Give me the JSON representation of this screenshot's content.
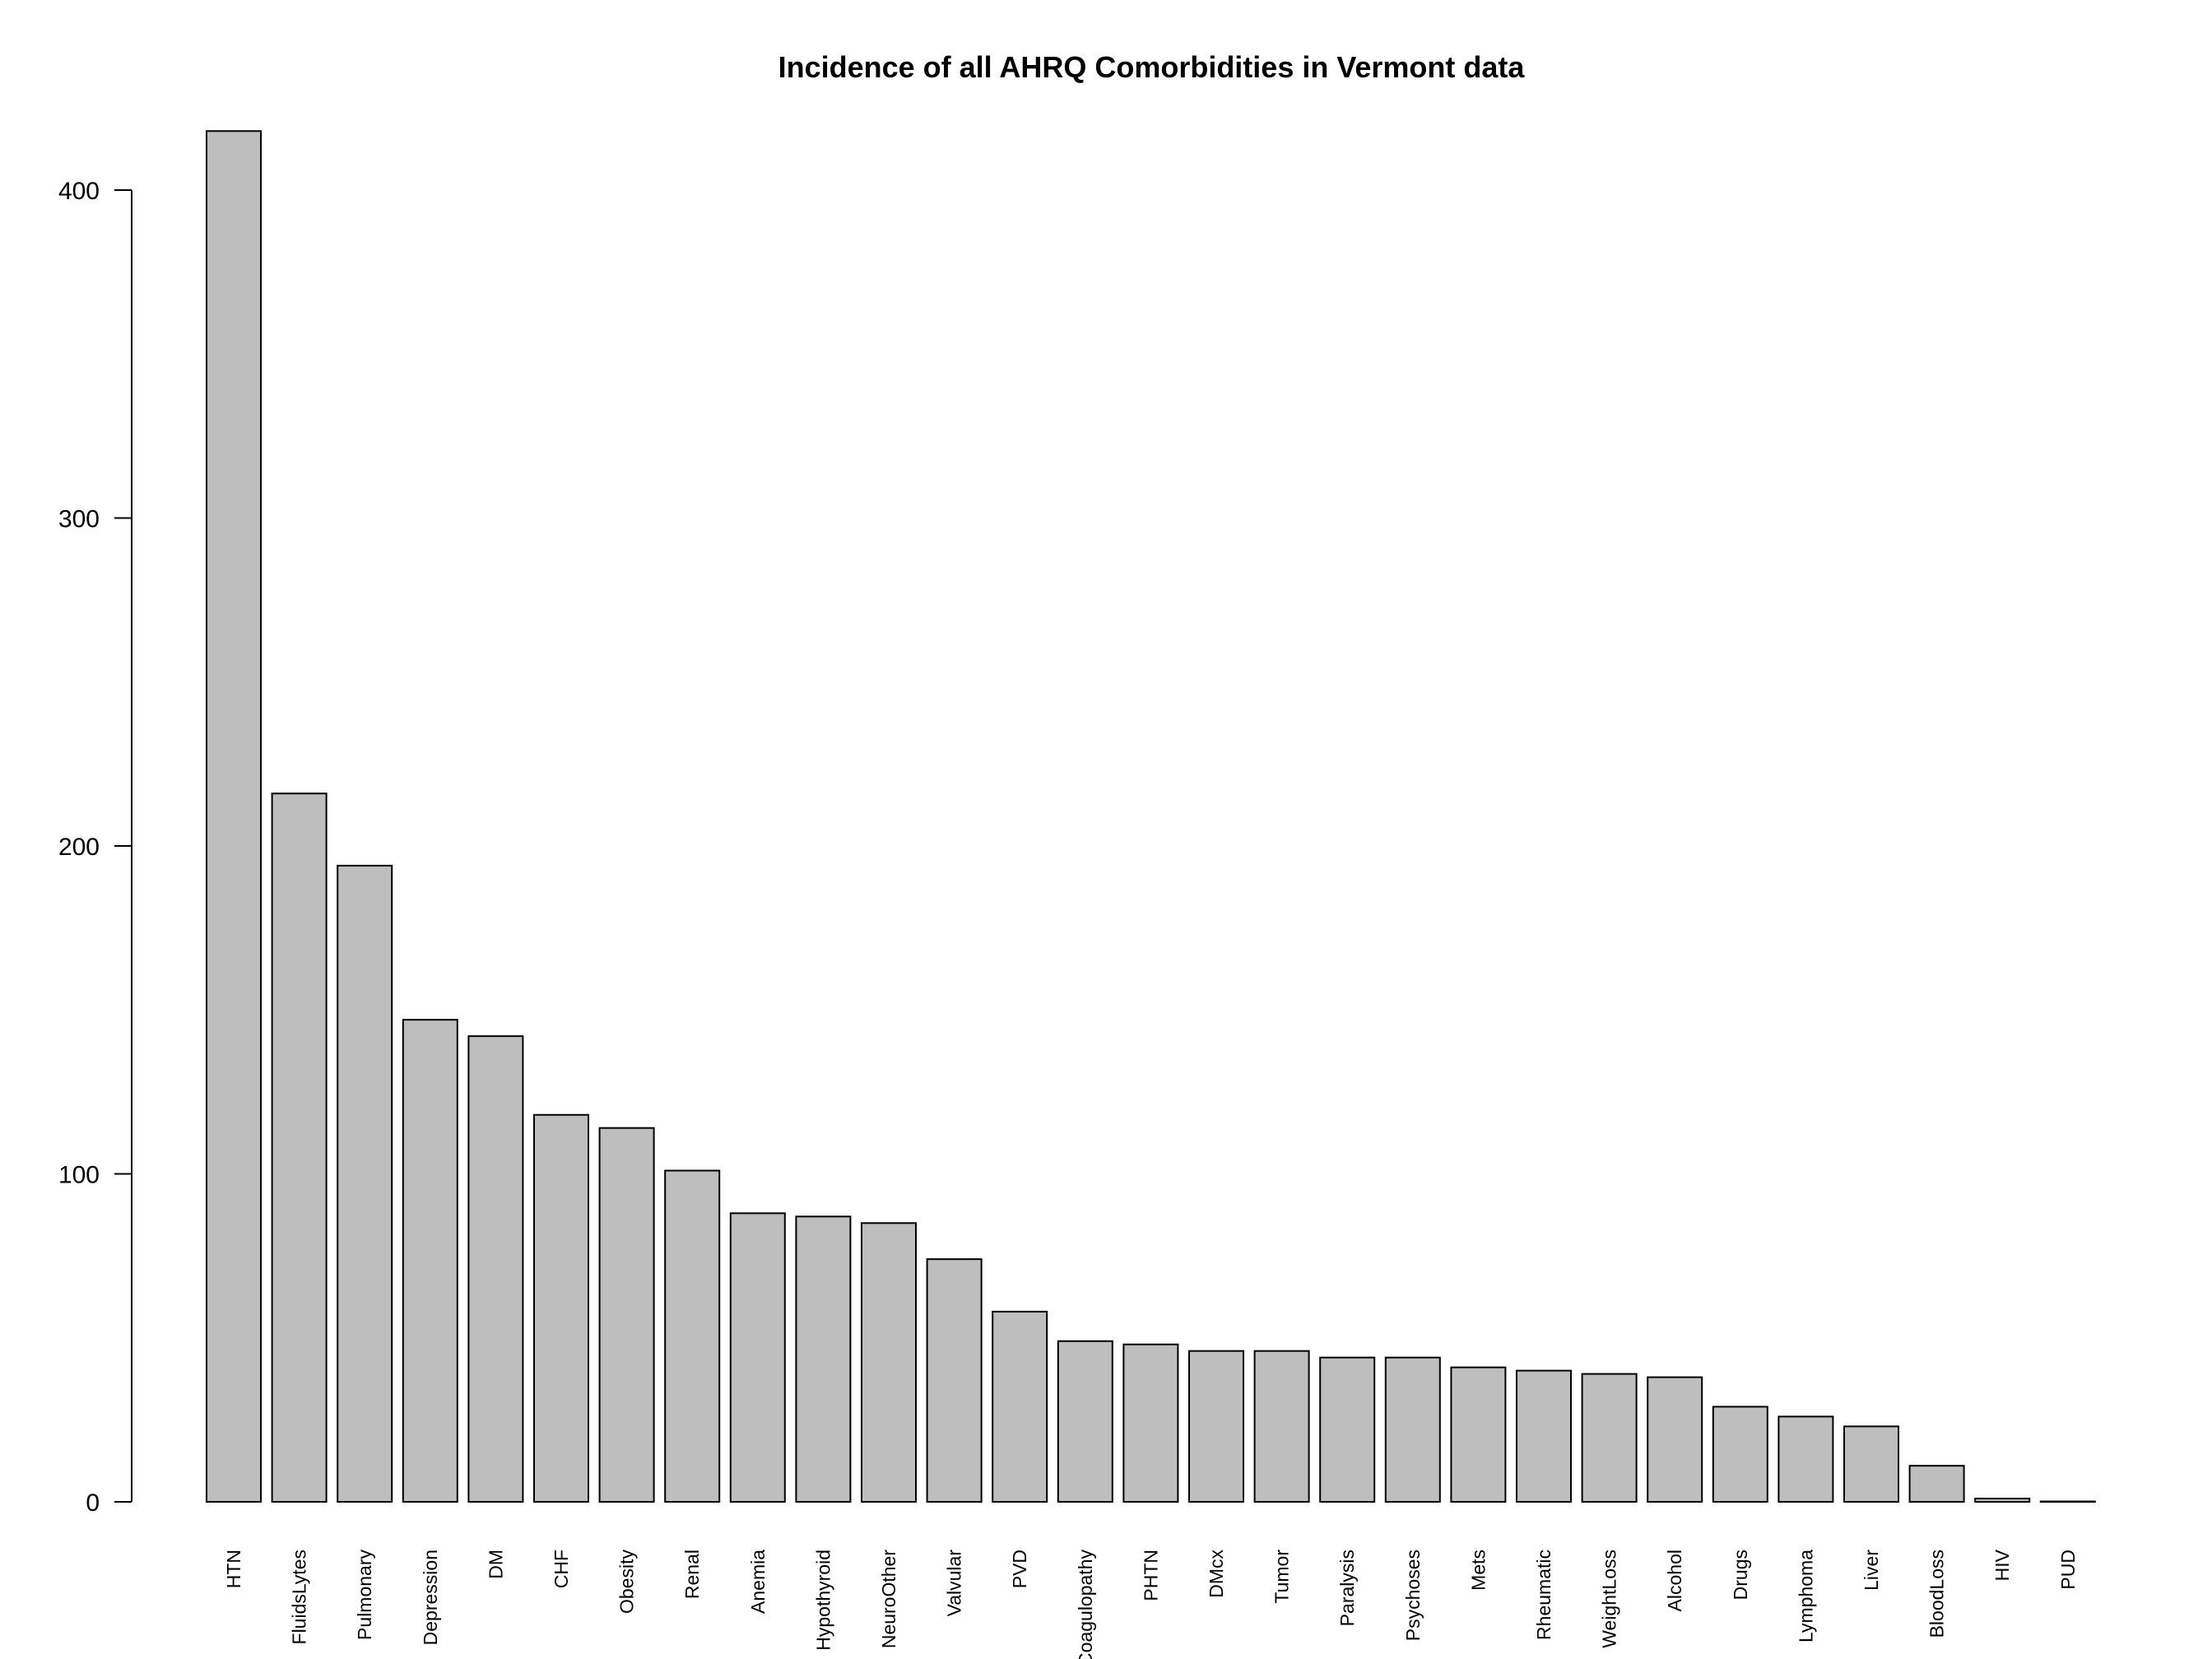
{
  "chart_data": {
    "type": "bar",
    "title": "Incidence of all AHRQ Comorbidities in Vermont data",
    "xlabel": "",
    "ylabel": "",
    "ylim": [
      0,
      420
    ],
    "yticks": [
      0,
      100,
      200,
      300,
      400
    ],
    "y_tick_labels": [
      "0",
      "100",
      "200",
      "300",
      "400"
    ],
    "grid": false,
    "bar_color": "#bebebe",
    "bar_border_color": "#000000",
    "categories": [
      "HTN",
      "FluidsLytes",
      "Pulmonary",
      "Depression",
      "DM",
      "CHF",
      "Obesity",
      "Renal",
      "Anemia",
      "Hypothyroid",
      "NeuroOther",
      "Valvular",
      "PVD",
      "Coagulopathy",
      "PHTN",
      "DMcx",
      "Tumor",
      "Paralysis",
      "Psychoses",
      "Mets",
      "Rheumatic",
      "WeightLoss",
      "Alcohol",
      "Drugs",
      "Lymphoma",
      "Liver",
      "BloodLoss",
      "HIV",
      "PUD"
    ],
    "values": [
      418,
      216,
      194,
      147,
      142,
      118,
      114,
      101,
      88,
      87,
      85,
      74,
      58,
      49,
      48,
      46,
      46,
      44,
      44,
      41,
      40,
      39,
      38,
      29,
      26,
      23,
      11,
      1,
      0
    ]
  }
}
